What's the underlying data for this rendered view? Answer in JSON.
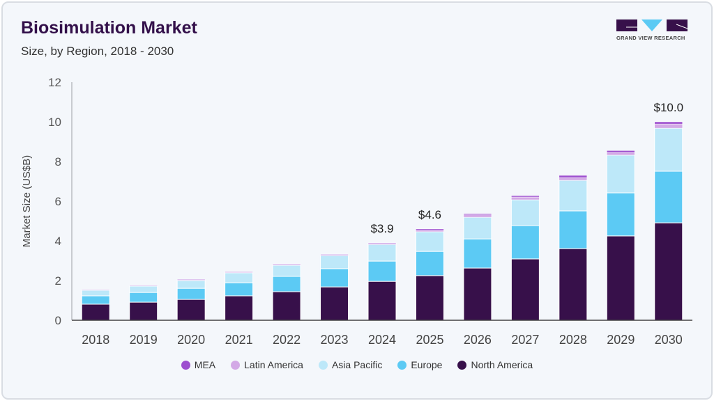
{
  "header": {
    "title": "Biosimulation Market",
    "subtitle": "Size, by Region, 2018 - 2030"
  },
  "logo": {
    "text": "GRAND VIEW RESEARCH"
  },
  "chart_data": {
    "type": "bar",
    "stacked": true,
    "title": "Biosimulation Market",
    "subtitle": "Size, by Region, 2018 - 2030",
    "xlabel": "",
    "ylabel": "Market Size (US$B)",
    "ylim": [
      0,
      12
    ],
    "yticks": [
      "0",
      "2",
      "4",
      "6",
      "8",
      "10",
      "12"
    ],
    "categories": [
      "2018",
      "2019",
      "2020",
      "2021",
      "2022",
      "2023",
      "2024",
      "2025",
      "2026",
      "2027",
      "2028",
      "2029",
      "2030"
    ],
    "series": [
      {
        "name": "North America",
        "color": "#37104a",
        "values": [
          0.81,
          0.91,
          1.05,
          1.23,
          1.44,
          1.68,
          1.96,
          2.25,
          2.63,
          3.09,
          3.61,
          4.25,
          4.91
        ]
      },
      {
        "name": "Europe",
        "color": "#5ccaf4",
        "values": [
          0.42,
          0.49,
          0.56,
          0.66,
          0.77,
          0.92,
          1.02,
          1.22,
          1.47,
          1.68,
          1.9,
          2.17,
          2.6
        ]
      },
      {
        "name": "Asia Pacific",
        "color": "#bde8f9",
        "values": [
          0.28,
          0.32,
          0.39,
          0.5,
          0.56,
          0.66,
          0.84,
          0.99,
          1.09,
          1.3,
          1.54,
          1.9,
          2.17
        ]
      },
      {
        "name": "Latin America",
        "color": "#d3a9e6",
        "values": [
          0.02,
          0.02,
          0.04,
          0.04,
          0.05,
          0.05,
          0.05,
          0.08,
          0.14,
          0.14,
          0.14,
          0.14,
          0.21
        ]
      },
      {
        "name": "MEA",
        "color": "#9d4fcf",
        "values": [
          0.01,
          0.01,
          0.02,
          0.02,
          0.02,
          0.02,
          0.03,
          0.06,
          0.05,
          0.07,
          0.11,
          0.09,
          0.11
        ]
      }
    ],
    "annotations": [
      {
        "category": "2024",
        "text": "$3.9"
      },
      {
        "category": "2025",
        "text": "$4.6"
      },
      {
        "category": "2030",
        "text": "$10.0"
      }
    ],
    "legend_order": [
      "MEA",
      "Latin America",
      "Asia Pacific",
      "Europe",
      "North America"
    ],
    "legend_position": "bottom",
    "grid": false
  }
}
